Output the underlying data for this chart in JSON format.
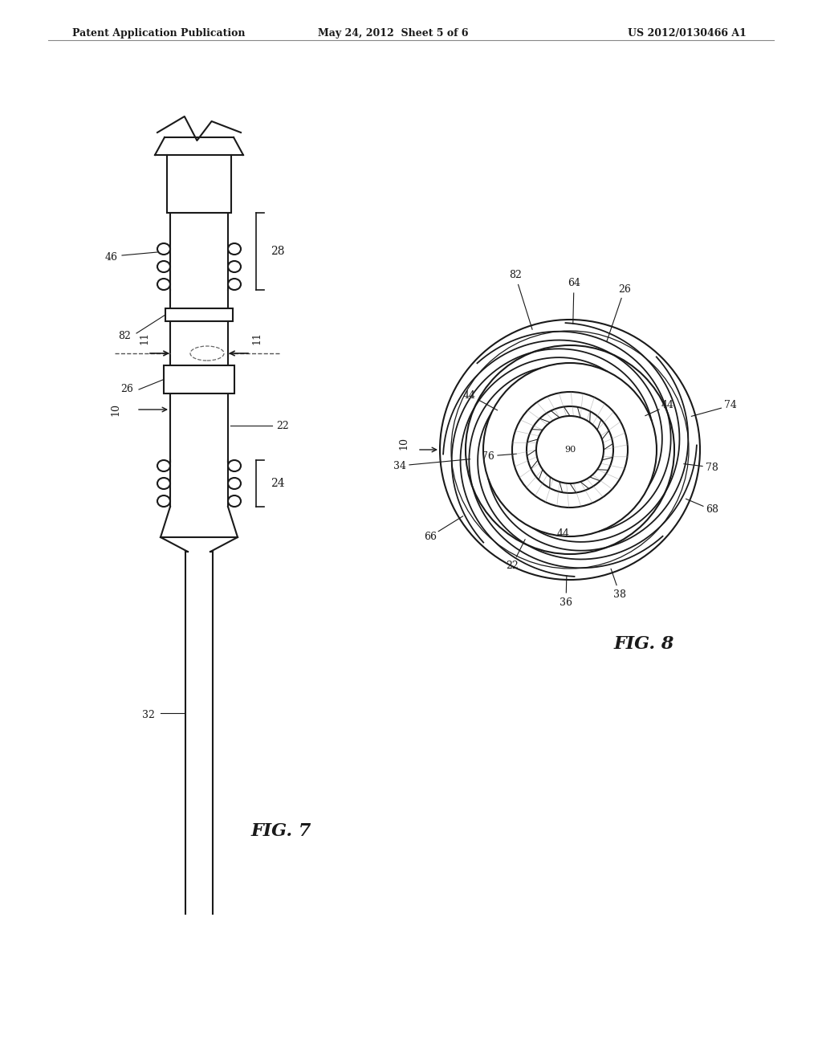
{
  "bg_color": "#ffffff",
  "header_left": "Patent Application Publication",
  "header_mid": "May 24, 2012  Sheet 5 of 6",
  "header_right": "US 2012/0130466 A1",
  "fig7_label": "FIG. 7",
  "fig8_label": "FIG. 8",
  "line_color": "#1a1a1a",
  "line_width": 1.5
}
